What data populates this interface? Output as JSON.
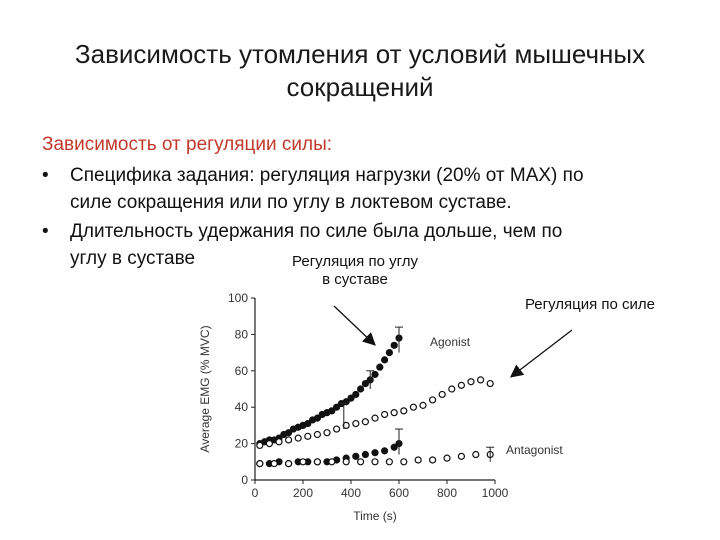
{
  "title": {
    "line1": "Зависимость утомления от условий мышечных",
    "line2": "сокращений"
  },
  "subheading": "Зависимость от регуляции силы:",
  "bullets": [
    {
      "line1": "Специфика задания: регуляция нагрузки (20% от MAX) по",
      "line2": "силе сокращения или по углу в локтевом суставе."
    },
    {
      "line1": "Длительность удержания по силе была дольше, чем по",
      "line2": "углу в суставе"
    }
  ],
  "annotations": {
    "joint_line1": "Регуляция по углу",
    "joint_line2": "в суставе",
    "force": "Регуляция по силе"
  },
  "colors": {
    "subheading": "#c0392b",
    "text": "#111111"
  },
  "chart_data": {
    "type": "scatter",
    "xlabel": "Time (s)",
    "ylabel": "Average EMG (% MVC)",
    "xlim": [
      0,
      1000
    ],
    "ylim": [
      0,
      100
    ],
    "xticks": [
      "0",
      "200",
      "400",
      "600",
      "800",
      "1000"
    ],
    "yticks": [
      "0",
      "20",
      "40",
      "60",
      "80",
      "100"
    ],
    "series_labels": {
      "agonist": "Agonist",
      "antagonist": "Antagonist"
    },
    "series": [
      {
        "style": "filled",
        "x": [
          20,
          40,
          60,
          80,
          100,
          120,
          140,
          160,
          180,
          200,
          220,
          240,
          260,
          280,
          300,
          320,
          340,
          360,
          380,
          400,
          420,
          440,
          460,
          480,
          500,
          520,
          540,
          560,
          580,
          600
        ],
        "y": [
          20,
          21,
          22,
          22,
          23,
          25,
          26,
          28,
          29,
          30,
          31,
          33,
          34,
          36,
          37,
          38,
          40,
          42,
          43,
          45,
          47,
          50,
          53,
          55,
          58,
          62,
          66,
          70,
          74,
          78
        ]
      },
      {
        "style": "open",
        "x": [
          20,
          60,
          100,
          140,
          180,
          220,
          260,
          300,
          340,
          380,
          420,
          460,
          500,
          540,
          580,
          620,
          660,
          700,
          740,
          780,
          820,
          860,
          900,
          940,
          980
        ],
        "y": [
          19,
          20,
          21,
          22,
          23,
          24,
          25,
          26,
          28,
          30,
          31,
          32,
          34,
          36,
          37,
          38,
          40,
          41,
          44,
          47,
          50,
          52,
          54,
          55,
          53
        ]
      },
      {
        "style": "filled",
        "x": [
          20,
          60,
          100,
          140,
          180,
          220,
          260,
          300,
          340,
          380,
          420,
          460,
          500,
          540,
          580,
          600
        ],
        "y": [
          9,
          9,
          10,
          9,
          10,
          10,
          10,
          10,
          11,
          12,
          13,
          14,
          15,
          16,
          18,
          20
        ]
      },
      {
        "style": "open",
        "x": [
          20,
          80,
          140,
          200,
          260,
          320,
          380,
          440,
          500,
          560,
          620,
          680,
          740,
          800,
          860,
          920,
          980
        ],
        "y": [
          9,
          9,
          9,
          10,
          10,
          10,
          10,
          10,
          10,
          10,
          10,
          11,
          11,
          12,
          13,
          14,
          14
        ]
      }
    ]
  }
}
